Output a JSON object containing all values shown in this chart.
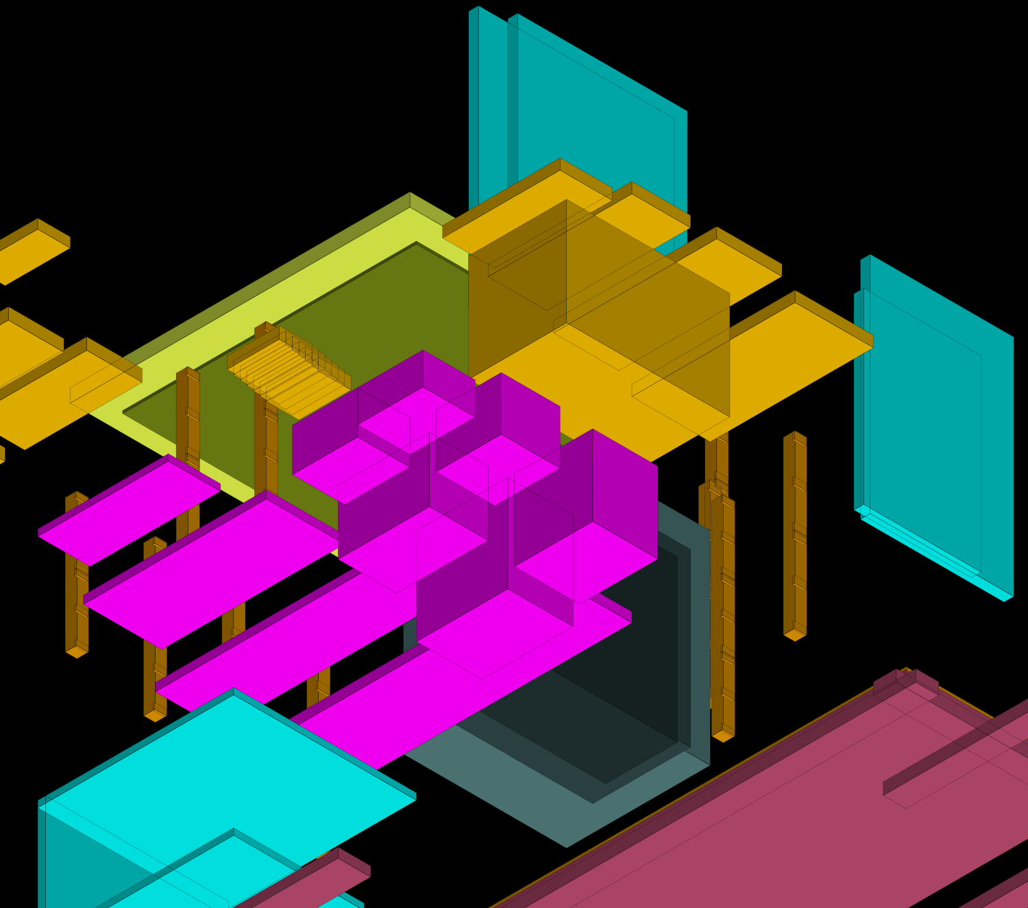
{
  "background_color": "#000000",
  "fig_width": 15.0,
  "fig_height": 13.26,
  "colors": {
    "cyan": "#00DDDD",
    "cyan_dark": "#009999",
    "cyan_dim": "#007777",
    "magenta": "#EE00EE",
    "magenta_dark": "#990099",
    "magenta_dim": "#660066",
    "gold": "#CC8800",
    "gold_dark": "#886600",
    "gold_dim": "#664400",
    "amber": "#DDAA00",
    "amber_dark": "#997700",
    "amber_light": "#FFCC22",
    "crimson": "#AA4466",
    "crimson_dark": "#773344",
    "crimson_dim": "#552233",
    "yellow_green": "#CCDD44",
    "yellow_green_dark": "#889922",
    "yellow_green_dim": "#667711",
    "teal_gray": "#4A7070",
    "teal_gray_dark": "#2A4040",
    "teal_gray_mid": "#3A5858"
  },
  "scale": 110,
  "ox": 560,
  "oy": 830
}
